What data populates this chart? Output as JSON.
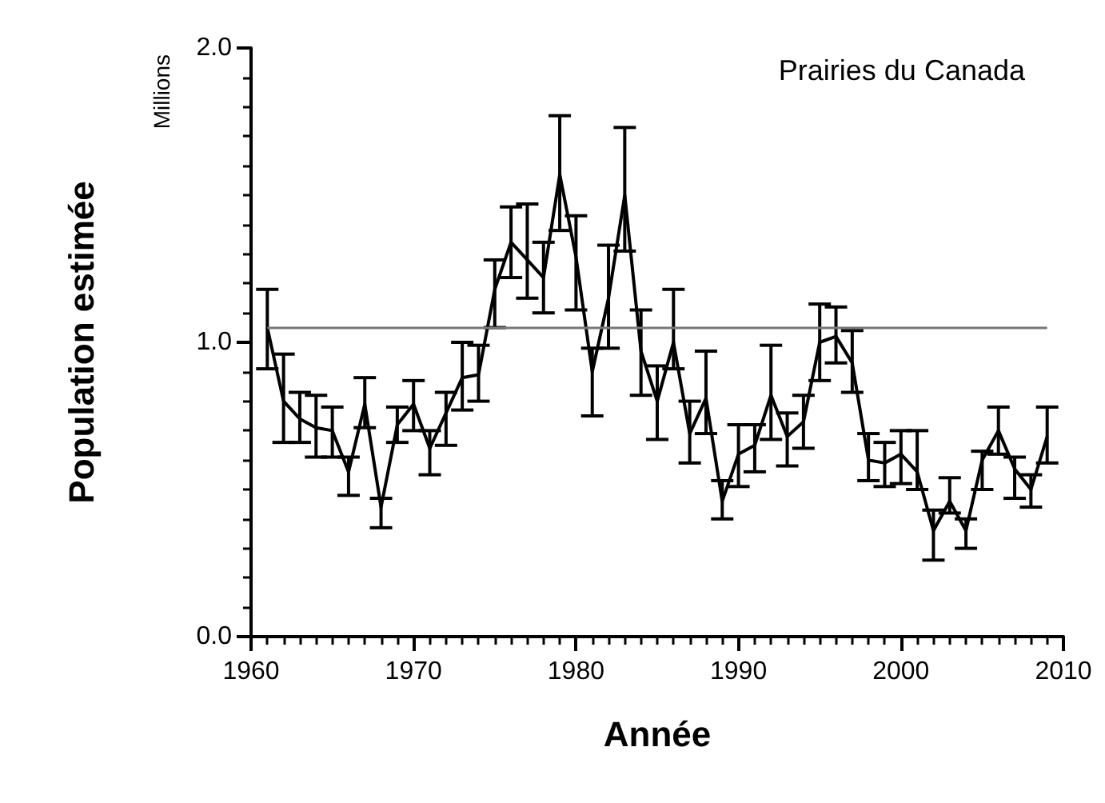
{
  "chart_data": {
    "type": "line",
    "title": "Prairies du Canada",
    "xlabel": "Année",
    "ylabel": "Population estimée",
    "annotations": [
      "Millions"
    ],
    "x": [
      1961,
      1962,
      1963,
      1964,
      1965,
      1966,
      1967,
      1968,
      1969,
      1970,
      1971,
      1972,
      1973,
      1974,
      1975,
      1976,
      1977,
      1978,
      1979,
      1980,
      1981,
      1982,
      1983,
      1984,
      1985,
      1986,
      1987,
      1988,
      1989,
      1990,
      1991,
      1992,
      1993,
      1994,
      1995,
      1996,
      1997,
      1998,
      1999,
      2000,
      2001,
      2002,
      2003,
      2004,
      2005,
      2006,
      2007,
      2008,
      2009
    ],
    "series": [
      {
        "color": "#000000",
        "values": [
          1.05,
          0.8,
          0.74,
          0.71,
          0.7,
          0.56,
          0.79,
          0.44,
          0.72,
          0.79,
          0.64,
          0.76,
          0.88,
          0.89,
          1.18,
          1.34,
          1.28,
          1.22,
          1.57,
          1.29,
          0.9,
          1.15,
          1.5,
          0.97,
          0.8,
          1.0,
          0.69,
          0.81,
          0.46,
          0.62,
          0.65,
          0.82,
          0.68,
          0.73,
          1.0,
          1.02,
          0.93,
          0.6,
          0.59,
          0.62,
          0.56,
          0.36,
          0.46,
          0.36,
          0.6,
          0.7,
          0.57,
          0.5,
          0.68
        ],
        "errors": [
          [
            0.91,
            1.18
          ],
          [
            0.66,
            0.96
          ],
          [
            0.66,
            0.83
          ],
          [
            0.61,
            0.82
          ],
          [
            0.61,
            0.78
          ],
          [
            0.48,
            0.61
          ],
          [
            0.71,
            0.88
          ],
          [
            0.37,
            0.47
          ],
          [
            0.66,
            0.78
          ],
          [
            0.7,
            0.87
          ],
          [
            0.55,
            0.7
          ],
          [
            0.65,
            0.83
          ],
          [
            0.77,
            1.0
          ],
          [
            0.8,
            0.99
          ],
          [
            1.05,
            1.28
          ],
          [
            1.22,
            1.46
          ],
          [
            1.15,
            1.47
          ],
          [
            1.1,
            1.34
          ],
          [
            1.38,
            1.77
          ],
          [
            1.11,
            1.43
          ],
          [
            0.75,
            0.98
          ],
          [
            0.98,
            1.33
          ],
          [
            1.31,
            1.73
          ],
          [
            0.82,
            1.11
          ],
          [
            0.67,
            0.92
          ],
          [
            0.91,
            1.18
          ],
          [
            0.59,
            0.8
          ],
          [
            0.69,
            0.97
          ],
          [
            0.4,
            0.53
          ],
          [
            0.51,
            0.72
          ],
          [
            0.56,
            0.72
          ],
          [
            0.67,
            0.99
          ],
          [
            0.58,
            0.76
          ],
          [
            0.64,
            0.82
          ],
          [
            0.87,
            1.13
          ],
          [
            0.93,
            1.12
          ],
          [
            0.83,
            1.04
          ],
          [
            0.53,
            0.69
          ],
          [
            0.51,
            0.66
          ],
          [
            0.52,
            0.7
          ],
          [
            0.5,
            0.7
          ],
          [
            0.26,
            0.43
          ],
          [
            0.42,
            0.54
          ],
          [
            0.3,
            0.4
          ],
          [
            0.5,
            0.63
          ],
          [
            0.62,
            0.78
          ],
          [
            0.47,
            0.61
          ],
          [
            0.44,
            0.55
          ],
          [
            0.59,
            0.78
          ]
        ]
      }
    ],
    "ref_lines": [
      {
        "axis": "y",
        "value": 1.05,
        "color": "#777777"
      }
    ],
    "xlim": [
      1960,
      2010
    ],
    "xticks": [
      1960,
      1970,
      1980,
      1990,
      2000,
      2010
    ],
    "ylim": [
      0,
      2
    ],
    "yticks": [
      {
        "value": 0,
        "label": "0.0"
      },
      {
        "value": 1,
        "label": "1.0"
      },
      {
        "value": 2,
        "label": "2.0"
      }
    ],
    "grid": false,
    "marker": "none",
    "line_style": "solid"
  }
}
